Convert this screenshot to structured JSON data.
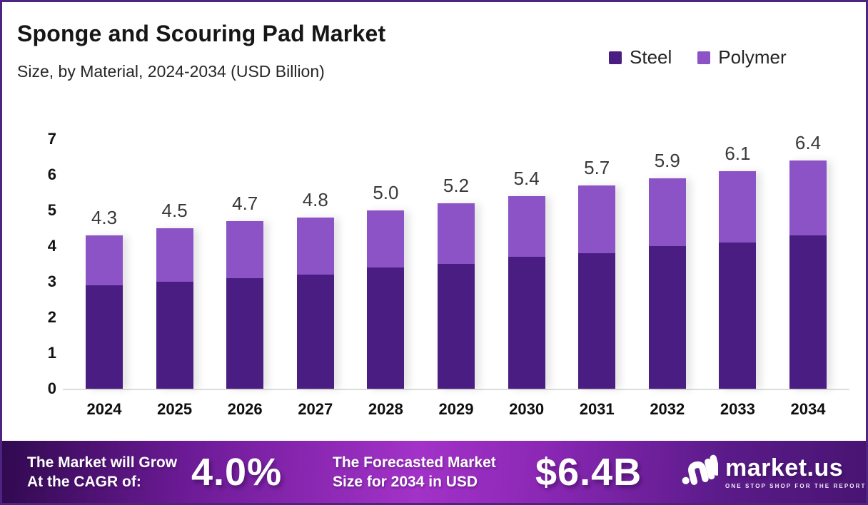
{
  "header": {
    "title_note": "bound from chart_data.title and chart_data.subtitle"
  },
  "chart_data": {
    "type": "bar",
    "stacked": true,
    "title": "Sponge and Scouring Pad Market",
    "subtitle": "Size, by Material, 2024-2034 (USD Billion)",
    "categories": [
      "2024",
      "2025",
      "2026",
      "2027",
      "2028",
      "2029",
      "2030",
      "2031",
      "2032",
      "2033",
      "2034"
    ],
    "series": [
      {
        "name": "Steel",
        "color": "#4A1D82",
        "values": [
          2.9,
          3.0,
          3.1,
          3.2,
          3.4,
          3.5,
          3.7,
          3.8,
          4.0,
          4.1,
          4.3
        ]
      },
      {
        "name": "Polymer",
        "color": "#8C53C6",
        "values": [
          1.4,
          1.5,
          1.6,
          1.6,
          1.6,
          1.7,
          1.7,
          1.9,
          1.9,
          2.0,
          2.1
        ]
      }
    ],
    "totals": [
      4.3,
      4.5,
      4.7,
      4.8,
      5.0,
      5.2,
      5.4,
      5.7,
      5.9,
      6.1,
      6.4
    ],
    "xlabel": "",
    "ylabel": "",
    "ylim": [
      0,
      7
    ],
    "yticks": [
      0,
      1,
      2,
      3,
      4,
      5,
      6,
      7
    ],
    "grid": false,
    "legend_position": "top-right"
  },
  "banner": {
    "cagr_label_line1": "The Market will Grow",
    "cagr_label_line2": "At the CAGR of:",
    "cagr_value": "4.0%",
    "forecast_label_line1": "The Forecasted Market",
    "forecast_label_line2": "Size for 2034 in USD",
    "forecast_value": "$6.4B",
    "logo_text": "market.us",
    "logo_tagline": "ONE STOP SHOP FOR THE REPORTS"
  },
  "colors": {
    "frame_border": "#4F2480",
    "axis_line": "#DCDCDC",
    "banner_mid": "#A332C8",
    "banner_dark_left": "#30094F",
    "banner_dark_right": "#481472",
    "text_dark": "#161616"
  }
}
